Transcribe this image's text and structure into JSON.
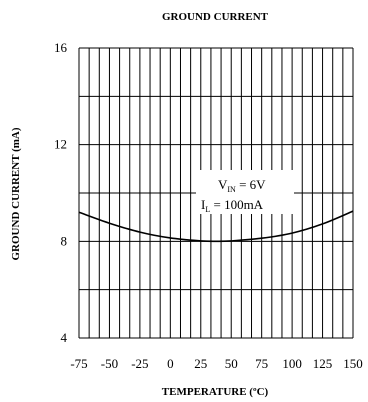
{
  "chart_data": {
    "type": "line",
    "title": "GROUND CURRENT",
    "xlabel": "TEMPERATURE (ºC)",
    "ylabel": "GROUND CURRENT (mA)",
    "xlim": [
      -75,
      150
    ],
    "ylim": [
      4,
      16
    ],
    "xticks": [
      "-75",
      "-50",
      "-25",
      "0",
      "25",
      "50",
      "75",
      "100",
      "125",
      "150"
    ],
    "yticks": [
      "4",
      "8",
      "12",
      "16"
    ],
    "grid": true,
    "annotation": {
      "line1_main": "V",
      "line1_sub": "IN",
      "line1_rest": " = 6V",
      "line2_main": "I",
      "line2_sub": "L",
      "line2_rest": " = 100mA"
    },
    "series": [
      {
        "x": [
          -75,
          -50,
          -25,
          0,
          25,
          37.5,
          50,
          75,
          100,
          125,
          150
        ],
        "y": [
          9.2,
          8.75,
          8.38,
          8.14,
          8.02,
          8.0,
          8.02,
          8.13,
          8.34,
          8.72,
          9.25
        ]
      }
    ]
  }
}
